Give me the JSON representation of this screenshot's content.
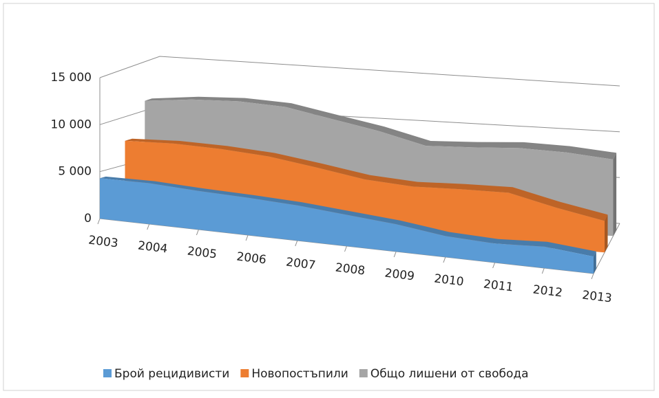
{
  "chart_data": {
    "type": "area3d",
    "categories": [
      "2003",
      "2004",
      "2005",
      "2006",
      "2007",
      "2008",
      "2009",
      "2010",
      "2011",
      "2012",
      "2013"
    ],
    "series": [
      {
        "name": "Брой рецидивисти",
        "color": "#5b9bd5",
        "values": [
          4300,
          4400,
          4200,
          4100,
          3900,
          3500,
          3100,
          2400,
          2200,
          2500,
          2000
        ]
      },
      {
        "name": "Новопостъпили",
        "color": "#ed7d31",
        "values": [
          7500,
          7700,
          7600,
          7300,
          6600,
          5800,
          5500,
          5700,
          5800,
          4600,
          3600
        ]
      },
      {
        "name": "Общо лишени от свобода",
        "color": "#a5a5a5",
        "values": [
          11000,
          11500,
          11700,
          11500,
          10600,
          9700,
          8500,
          8700,
          9000,
          8900,
          8500
        ]
      }
    ],
    "ylim": [
      0,
      15000
    ],
    "yticks": [
      0,
      {
        "value": 5000,
        "label": "5 000"
      },
      {
        "value": 10000,
        "label": "10 000"
      },
      {
        "value": 15000,
        "label": "15 000"
      }
    ],
    "grid": true,
    "legend": "bottom"
  }
}
